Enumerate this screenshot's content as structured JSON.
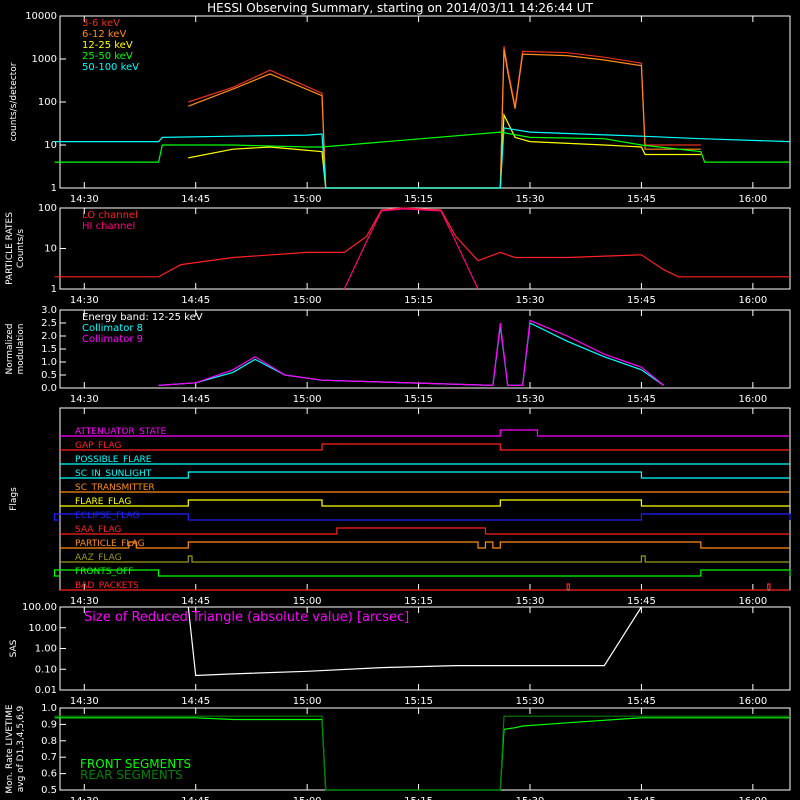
{
  "title": "HESSI Observing Summary, starting on 2014/03/11 14:26:44 UT",
  "time_ticks": [
    "14:30",
    "14:45",
    "15:00",
    "15:15",
    "15:30",
    "15:45",
    "16:00"
  ],
  "colors": {
    "background": "#000000",
    "axes": "#ffffff"
  },
  "chart_data": [
    {
      "type": "line",
      "id": "count-rates",
      "ylabel": "counts/s/detector",
      "yscale": "log",
      "ylim": [
        1,
        10000
      ],
      "yticks": [
        "1",
        "10",
        "100",
        "1000",
        "10000"
      ],
      "series": [
        {
          "name": "3-6 keV",
          "color": "#e83020",
          "x": [
            "14:26",
            "14:40",
            "14:44",
            "14:50",
            "14:55",
            "15:02",
            "15:02.5",
            "15:26",
            "15:26.5",
            "15:27",
            "15:28",
            "15:29",
            "15:35",
            "15:40",
            "15:45",
            "15:45.5",
            "15:53"
          ],
          "y": [
            null,
            null,
            100,
            220,
            550,
            160,
            1,
            1,
            2000,
            600,
            80,
            1500,
            1400,
            1100,
            800,
            10,
            10
          ]
        },
        {
          "name": "6-12 keV",
          "color": "#ff8c1a",
          "x": [
            "14:26",
            "14:40",
            "14:44",
            "14:50",
            "14:55",
            "15:02",
            "15:02.5",
            "15:26",
            "15:26.5",
            "15:27",
            "15:28",
            "15:29",
            "15:35",
            "15:40",
            "15:45",
            "15:45.5",
            "15:53"
          ],
          "y": [
            null,
            null,
            80,
            200,
            450,
            140,
            1,
            1,
            1700,
            500,
            70,
            1300,
            1200,
            950,
            700,
            8,
            8
          ]
        },
        {
          "name": "12-25 keV",
          "color": "#ffff00",
          "x": [
            "14:26",
            "14:40",
            "14:44",
            "14:50",
            "14:55",
            "15:02",
            "15:02.5",
            "15:26",
            "15:26.5",
            "15:28",
            "15:30",
            "15:40",
            "15:45",
            "15:45.5",
            "15:53"
          ],
          "y": [
            null,
            null,
            5,
            8,
            9,
            7,
            1,
            1,
            50,
            15,
            12,
            10,
            9,
            6,
            6
          ]
        },
        {
          "name": "25-50 keV",
          "color": "#00ff00",
          "x": [
            "14:26",
            "14:40",
            "14:40.5",
            "14:50",
            "15:00",
            "15:02",
            "15:26",
            "15:30",
            "15:40",
            "15:45",
            "15:53",
            "15:53.5",
            "16:05"
          ],
          "y": [
            4,
            4,
            10,
            10,
            9,
            9,
            20,
            15,
            14,
            10,
            7,
            4,
            4
          ]
        },
        {
          "name": "50-100 keV",
          "color": "#00ffff",
          "x": [
            "14:26",
            "14:40",
            "14:40.5",
            "14:50",
            "15:00",
            "15:02",
            "15:02.5",
            "15:26",
            "15:26.5",
            "15:30",
            "15:45",
            "15:53",
            "16:05"
          ],
          "y": [
            12,
            12,
            15,
            16,
            17,
            18,
            1,
            1,
            25,
            20,
            16,
            14,
            12
          ]
        }
      ]
    },
    {
      "type": "line",
      "id": "particle-rates",
      "ylabel": "PARTICLE RATES",
      "ylabel2": "Counts/s",
      "yscale": "log",
      "ylim": [
        1,
        100
      ],
      "yticks": [
        "1",
        "10",
        "100"
      ],
      "series": [
        {
          "name": "LO channel",
          "color": "#ff2020",
          "x": [
            "14:26",
            "14:40",
            "14:43",
            "14:50",
            "15:00",
            "15:05",
            "15:08",
            "15:10",
            "15:13",
            "15:18",
            "15:20",
            "15:23",
            "15:26",
            "15:28",
            "15:35",
            "15:45",
            "15:48",
            "15:50",
            "16:05"
          ],
          "y": [
            2,
            2,
            4,
            6,
            8,
            8,
            20,
            90,
            100,
            90,
            20,
            5,
            8,
            6,
            6,
            7,
            3,
            2,
            2
          ]
        },
        {
          "name": "HI channel",
          "color": "#ff0080",
          "x": [
            "15:05",
            "15:08",
            "15:10",
            "15:13",
            "15:18",
            "15:20",
            "15:23"
          ],
          "y": [
            1,
            15,
            85,
            95,
            85,
            15,
            1
          ]
        }
      ]
    },
    {
      "type": "line",
      "id": "modulation",
      "ylabel": "Normalized",
      "ylabel2": "modulation",
      "ylim": [
        0,
        3.0
      ],
      "yticks": [
        "0.0",
        "0.5",
        "1.0",
        "1.5",
        "2.0",
        "2.5",
        "3.0"
      ],
      "annotation": "Energy band: 12-25 keV",
      "series": [
        {
          "name": "Collimator 8",
          "color": "#00ffff",
          "x": [
            "14:40",
            "14:45",
            "14:50",
            "14:53",
            "14:57",
            "15:02",
            "15:25",
            "15:26",
            "15:27",
            "15:29",
            "15:30",
            "15:35",
            "15:40",
            "15:45",
            "15:48"
          ],
          "y": [
            0.1,
            0.2,
            0.6,
            1.1,
            0.5,
            0.3,
            0.1,
            2.4,
            0.1,
            0.1,
            2.5,
            1.8,
            1.2,
            0.7,
            0.1
          ]
        },
        {
          "name": "Collimator 9",
          "color": "#ff00ff",
          "x": [
            "14:40",
            "14:45",
            "14:50",
            "14:53",
            "14:57",
            "15:02",
            "15:25",
            "15:26",
            "15:27",
            "15:29",
            "15:30",
            "15:35",
            "15:40",
            "15:45",
            "15:48"
          ],
          "y": [
            0.1,
            0.2,
            0.7,
            1.2,
            0.5,
            0.3,
            0.1,
            2.5,
            0.1,
            0.1,
            2.6,
            2.0,
            1.3,
            0.8,
            0.1
          ]
        }
      ]
    },
    {
      "type": "line",
      "id": "flags",
      "ylabel": "Flags",
      "flags": [
        {
          "name": "ATTENUATOR_STATE",
          "color": "#ff00ff",
          "on": [
            [
              "15:26",
              "15:31"
            ]
          ]
        },
        {
          "name": "GAP_FLAG",
          "color": "#ff2020",
          "on": [
            [
              "15:02",
              "15:26"
            ]
          ]
        },
        {
          "name": "POSSIBLE_FLARE",
          "color": "#00ffff",
          "on": []
        },
        {
          "name": "SC_IN_SUNLIGHT",
          "color": "#00ffff",
          "on": [
            [
              "14:44",
              "15:45"
            ]
          ]
        },
        {
          "name": "SC_TRANSMITTER",
          "color": "#ff8c1a",
          "on": []
        },
        {
          "name": "FLARE_FLAG",
          "color": "#ffff00",
          "on": [
            [
              "14:44",
              "15:02"
            ],
            [
              "15:26",
              "15:45"
            ]
          ]
        },
        {
          "name": "ECLIPSE_FLAG",
          "color": "#2020ff",
          "on": [
            [
              "14:26",
              "14:44"
            ],
            [
              "15:45",
              "16:05"
            ]
          ]
        },
        {
          "name": "SAA_FLAG",
          "color": "#ff2020",
          "on": [
            [
              "15:04",
              "15:24"
            ]
          ]
        },
        {
          "name": "PARTICLE_FLAG",
          "color": "#ff8c1a",
          "on": [
            [
              "14:36",
              "14:37"
            ],
            [
              "14:44",
              "15:23"
            ],
            [
              "15:24",
              "15:25"
            ],
            [
              "15:26",
              "15:53"
            ]
          ]
        },
        {
          "name": "AAZ_FLAG",
          "color": "#9a9a20",
          "on": [
            [
              "14:44",
              "14:44.5"
            ],
            [
              "15:45",
              "15:45.5"
            ]
          ]
        },
        {
          "name": "FRONTS_OFF",
          "color": "#00ff00",
          "on": [
            [
              "14:26",
              "14:40"
            ],
            [
              "15:53",
              "16:05"
            ]
          ]
        },
        {
          "name": "BAD_PACKETS",
          "color": "#ff2020",
          "on": [
            [
              "15:35",
              "15:35.3"
            ],
            [
              "16:02",
              "16:02.3"
            ]
          ]
        }
      ]
    },
    {
      "type": "line",
      "id": "sas",
      "ylabel": "SAS",
      "yscale": "log",
      "ylim": [
        0.01,
        100
      ],
      "yticks": [
        "0.01",
        "0.10",
        "1.00",
        "10.00",
        "100.00"
      ],
      "annotation": "Size of Reduced Triangle (absolute value) [arcsec]",
      "series": [
        {
          "name": "",
          "color": "#ffffff",
          "x": [
            "14:44",
            "14:45",
            "14:50",
            "15:00",
            "15:10",
            "15:20",
            "15:30",
            "15:40",
            "15:45"
          ],
          "y": [
            100,
            0.05,
            0.06,
            0.08,
            0.12,
            0.15,
            0.15,
            0.15,
            100
          ]
        }
      ]
    },
    {
      "type": "line",
      "id": "livetime",
      "ylabel": "Mon. Rate LIVETIME",
      "ylabel2": "avg of D1,3,4,5,6,9",
      "ylim": [
        0.5,
        1.0
      ],
      "yticks": [
        "0.5",
        "0.6",
        "0.7",
        "0.8",
        "0.9",
        "1.0"
      ],
      "series": [
        {
          "name": "FRONT SEGMENTS",
          "color": "#00ff00",
          "x": [
            "14:26",
            "14:45",
            "14:50",
            "15:00",
            "15:02",
            "15:02.5",
            "15:26",
            "15:26.5",
            "15:28",
            "15:29",
            "15:35",
            "15:45",
            "16:05"
          ],
          "y": [
            0.94,
            0.94,
            0.93,
            0.93,
            0.93,
            0.5,
            0.5,
            0.87,
            0.88,
            0.89,
            0.91,
            0.94,
            0.94
          ]
        },
        {
          "name": "REAR SEGMENTS",
          "color": "#008000",
          "x": [
            "14:26",
            "15:02",
            "15:02.5",
            "15:26",
            "15:26.5",
            "15:28",
            "16:05"
          ],
          "y": [
            0.95,
            0.95,
            0.5,
            0.5,
            0.95,
            0.95,
            0.95
          ]
        }
      ]
    }
  ]
}
